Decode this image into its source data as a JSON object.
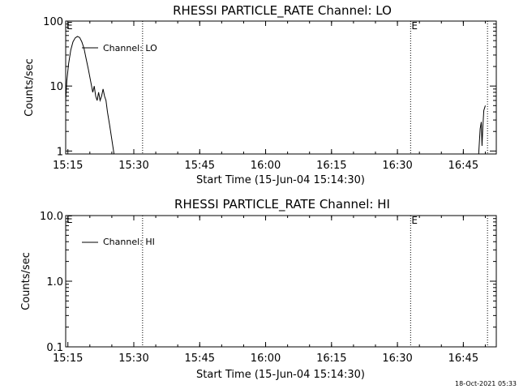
{
  "chart_data": [
    {
      "type": "line",
      "title": "RHESSI PARTICLE_RATE Channel: LO",
      "xlabel": "Start Time (15-Jun-04 15:14:30)",
      "ylabel": "Counts/sec",
      "yscale": "log",
      "xlim": [
        "15:14:30",
        "16:52:30"
      ],
      "ylim": [
        0.9,
        100
      ],
      "x_ticks": [
        "15:15",
        "15:30",
        "15:45",
        "16:00",
        "16:15",
        "16:30",
        "16:45"
      ],
      "y_ticks": [
        "1",
        "10",
        "100"
      ],
      "event_markers": [
        {
          "time": "15:32:00",
          "label": ""
        },
        {
          "time": "16:33:00",
          "label": "E"
        },
        {
          "time": "16:50:30",
          "label": ""
        }
      ],
      "edge_label_left": "E",
      "legend": {
        "label": "Channel: LO",
        "position": "top-left"
      },
      "series": [
        {
          "name": "Channel: LO",
          "points": [
            [
              "15:14:30",
              6
            ],
            [
              "15:14:45",
              12
            ],
            [
              "15:15:10",
              22
            ],
            [
              "15:15:40",
              36
            ],
            [
              "15:16:10",
              48
            ],
            [
              "15:16:40",
              55
            ],
            [
              "15:17:10",
              58
            ],
            [
              "15:17:40",
              56
            ],
            [
              "15:18:10",
              48
            ],
            [
              "15:18:40",
              38
            ],
            [
              "15:19:10",
              26
            ],
            [
              "15:19:40",
              18
            ],
            [
              "15:20:10",
              12
            ],
            [
              "15:20:40",
              8
            ],
            [
              "15:21:00",
              10
            ],
            [
              "15:21:20",
              7
            ],
            [
              "15:21:40",
              6
            ],
            [
              "15:22:00",
              8
            ],
            [
              "15:22:20",
              6
            ],
            [
              "15:22:40",
              7
            ],
            [
              "15:23:00",
              9
            ],
            [
              "15:23:20",
              7
            ],
            [
              "15:23:40",
              6
            ],
            [
              "15:24:00",
              4
            ],
            [
              "15:24:30",
              2.5
            ],
            [
              "15:25:00",
              1.5
            ],
            [
              "15:25:30",
              0.9
            ]
          ]
        },
        {
          "name": "Channel: LO",
          "points": [
            [
              "16:48:30",
              0.9
            ],
            [
              "16:48:50",
              2.2
            ],
            [
              "16:49:05",
              2.8
            ],
            [
              "16:49:15",
              1.2
            ],
            [
              "16:49:25",
              2.2
            ],
            [
              "16:49:40",
              4.2
            ],
            [
              "16:50:00",
              5.0
            ]
          ]
        }
      ]
    },
    {
      "type": "line",
      "title": "RHESSI PARTICLE_RATE Channel: HI",
      "xlabel": "Start Time (15-Jun-04 15:14:30)",
      "ylabel": "Counts/sec",
      "yscale": "log",
      "xlim": [
        "15:14:30",
        "16:52:30"
      ],
      "ylim": [
        0.1,
        10.0
      ],
      "x_ticks": [
        "15:15",
        "15:30",
        "15:45",
        "16:00",
        "16:15",
        "16:30",
        "16:45"
      ],
      "y_ticks": [
        "0.1",
        "1.0",
        "10.0"
      ],
      "event_markers": [
        {
          "time": "15:32:00",
          "label": ""
        },
        {
          "time": "16:33:00",
          "label": "E"
        },
        {
          "time": "16:50:30",
          "label": ""
        }
      ],
      "edge_label_left": "E",
      "legend": {
        "label": "Channel: HI",
        "position": "top-left"
      },
      "series": [
        {
          "name": "Channel: HI",
          "points": []
        }
      ]
    }
  ],
  "footer": {
    "timestamp": "18-Oct-2021 05:33"
  }
}
